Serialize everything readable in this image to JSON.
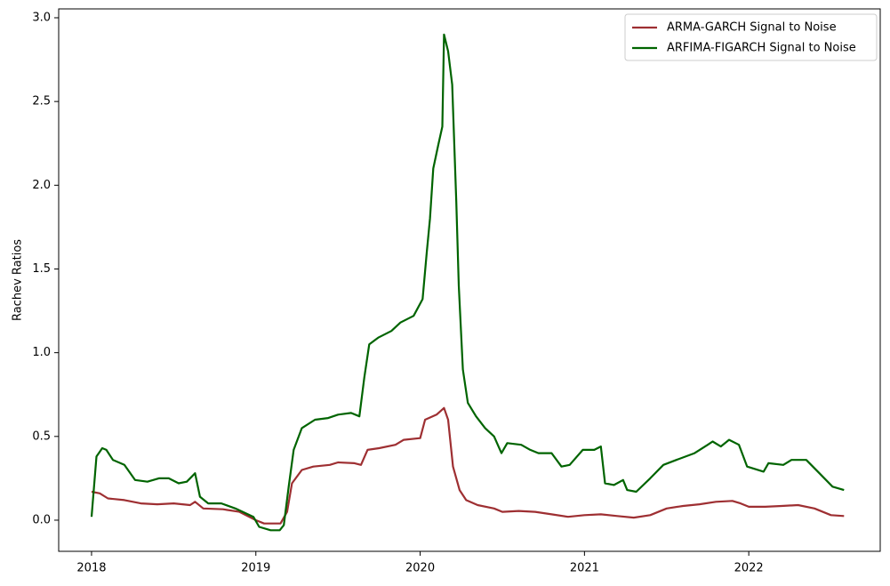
{
  "chart_data": {
    "type": "line",
    "ylabel": "Rachev Ratios",
    "xlim": [
      2017.8,
      2022.8
    ],
    "xticks": [
      2018,
      2019,
      2020,
      2021,
      2022
    ],
    "ylim": [
      -0.186,
      3.053
    ],
    "yticks": [
      {
        "value": 0,
        "label": "0.0"
      },
      0.5,
      {
        "value": 1,
        "label": "1.0"
      },
      1.5,
      {
        "value": 2,
        "label": "2.0"
      },
      2.5,
      {
        "value": 3,
        "label": "3.0"
      }
    ],
    "legend": "upper right",
    "series": [
      {
        "name": "ARMA-GARCH Signal to Noise",
        "color": "#9e2f32",
        "x": [
          2018.0,
          2018.05,
          2018.1,
          2018.2,
          2018.3,
          2018.4,
          2018.5,
          2018.6,
          2018.63,
          2018.68,
          2018.8,
          2018.9,
          2019.0,
          2019.05,
          2019.15,
          2019.19,
          2019.22,
          2019.28,
          2019.35,
          2019.45,
          2019.5,
          2019.6,
          2019.64,
          2019.68,
          2019.75,
          2019.85,
          2019.9,
          2020.0,
          2020.03,
          2020.1,
          2020.145,
          2020.17,
          2020.2,
          2020.24,
          2020.28,
          2020.35,
          2020.45,
          2020.5,
          2020.6,
          2020.7,
          2020.8,
          2020.9,
          2021.0,
          2021.1,
          2021.2,
          2021.3,
          2021.4,
          2021.5,
          2021.6,
          2021.7,
          2021.8,
          2021.9,
          2021.95,
          2022.0,
          2022.1,
          2022.2,
          2022.3,
          2022.4,
          2022.5,
          2022.58
        ],
        "values": [
          0.17,
          0.16,
          0.13,
          0.12,
          0.1,
          0.095,
          0.1,
          0.09,
          0.11,
          0.07,
          0.065,
          0.05,
          0.0,
          -0.02,
          -0.02,
          0.05,
          0.22,
          0.3,
          0.32,
          0.33,
          0.345,
          0.34,
          0.33,
          0.42,
          0.43,
          0.45,
          0.48,
          0.49,
          0.6,
          0.63,
          0.67,
          0.6,
          0.32,
          0.18,
          0.12,
          0.09,
          0.07,
          0.05,
          0.055,
          0.05,
          0.035,
          0.02,
          0.03,
          0.035,
          0.025,
          0.015,
          0.03,
          0.07,
          0.085,
          0.095,
          0.11,
          0.115,
          0.1,
          0.08,
          0.08,
          0.085,
          0.09,
          0.07,
          0.03,
          0.025
        ]
      },
      {
        "name": "ARFIMA-FIGARCH Signal to Noise",
        "color": "#006400",
        "x": [
          2018.0,
          2018.03,
          2018.065,
          2018.09,
          2018.13,
          2018.2,
          2018.265,
          2018.34,
          2018.41,
          2018.47,
          2018.53,
          2018.58,
          2018.63,
          2018.66,
          2018.71,
          2018.79,
          2018.875,
          2018.985,
          2019.02,
          2019.09,
          2019.145,
          2019.17,
          2019.2,
          2019.23,
          2019.28,
          2019.36,
          2019.44,
          2019.5,
          2019.58,
          2019.63,
          2019.66,
          2019.69,
          2019.745,
          2019.825,
          2019.88,
          2019.96,
          2020.015,
          2020.04,
          2020.06,
          2020.08,
          2020.11,
          2020.135,
          2020.145,
          2020.17,
          2020.195,
          2020.22,
          2020.235,
          2020.26,
          2020.29,
          2020.34,
          2020.395,
          2020.45,
          2020.495,
          2020.53,
          2020.615,
          2020.67,
          2020.72,
          2020.8,
          2020.86,
          2020.91,
          2020.99,
          2021.06,
          2021.1,
          2021.125,
          2021.18,
          2021.235,
          2021.26,
          2021.315,
          2021.4,
          2021.48,
          2021.56,
          2021.67,
          2021.75,
          2021.78,
          2021.83,
          2021.88,
          2021.94,
          2021.99,
          2022.09,
          2022.12,
          2022.21,
          2022.26,
          2022.35,
          2022.43,
          2022.51,
          2022.58
        ],
        "values": [
          0.02,
          0.38,
          0.43,
          0.42,
          0.36,
          0.33,
          0.24,
          0.23,
          0.25,
          0.25,
          0.22,
          0.23,
          0.28,
          0.14,
          0.1,
          0.1,
          0.07,
          0.02,
          -0.04,
          -0.06,
          -0.06,
          -0.03,
          0.2,
          0.42,
          0.55,
          0.6,
          0.61,
          0.63,
          0.64,
          0.62,
          0.85,
          1.05,
          1.09,
          1.13,
          1.18,
          1.22,
          1.32,
          1.6,
          1.8,
          2.1,
          2.24,
          2.35,
          2.9,
          2.8,
          2.6,
          1.9,
          1.4,
          0.9,
          0.7,
          0.62,
          0.55,
          0.5,
          0.4,
          0.46,
          0.45,
          0.42,
          0.4,
          0.4,
          0.32,
          0.33,
          0.42,
          0.42,
          0.44,
          0.22,
          0.21,
          0.24,
          0.18,
          0.17,
          0.25,
          0.33,
          0.36,
          0.4,
          0.45,
          0.47,
          0.44,
          0.48,
          0.45,
          0.32,
          0.29,
          0.34,
          0.33,
          0.36,
          0.36,
          0.28,
          0.2,
          0.18
        ]
      }
    ]
  }
}
